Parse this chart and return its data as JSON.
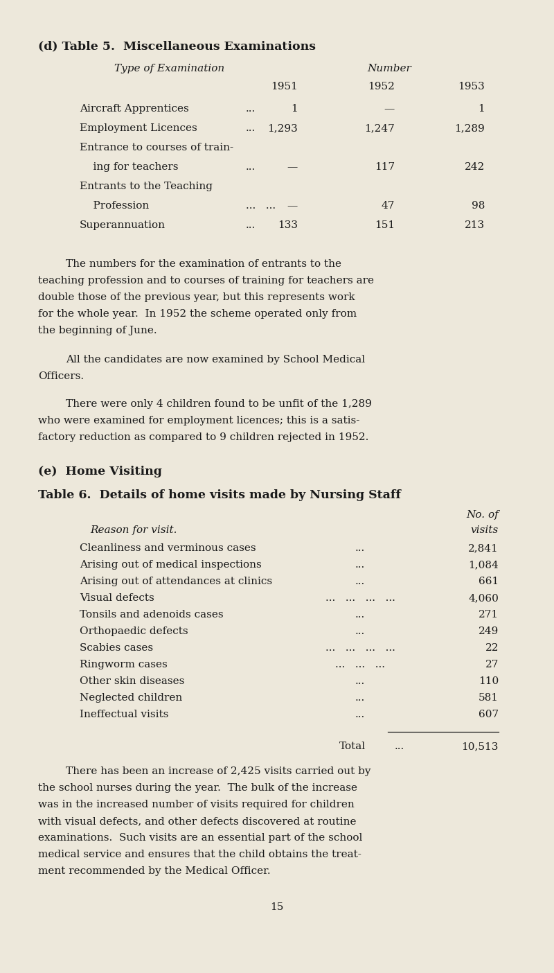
{
  "bg_color": "#ede8db",
  "text_color": "#1a1a1a",
  "page_width": 8.0,
  "page_height": 14.04,
  "dpi": 100,
  "section_d_title": "(d) Table 5.  Miscellaneous Examinations",
  "table5_col_header_type": "Type of Examination",
  "table5_col_header_number": "Number",
  "table5_year_headers": [
    "1951",
    "1952",
    "1953"
  ],
  "table5_rows": [
    {
      "label": "Aircraft Apprentices",
      "dots": "...",
      "v1951": "1",
      "v1952": "—",
      "v1953": "1"
    },
    {
      "label": "Employment Licences",
      "dots": "...",
      "v1951": "1,293",
      "v1952": "1,247",
      "v1953": "1,289"
    },
    {
      "label": "Entrance to courses of train-",
      "dots": "",
      "v1951": "",
      "v1952": "",
      "v1953": ""
    },
    {
      "label": "    ing for teachers",
      "dots": "...",
      "v1951": "—",
      "v1952": "117",
      "v1953": "242"
    },
    {
      "label": "Entrants to the Teaching",
      "dots": "",
      "v1951": "",
      "v1952": "",
      "v1953": ""
    },
    {
      "label": "    Profession",
      "dots": "...   ...",
      "v1951": "—",
      "v1952": "47",
      "v1953": "98"
    },
    {
      "label": "Superannuation",
      "dots": "...",
      "v1951": "133",
      "v1952": "151",
      "v1953": "213"
    }
  ],
  "para1_lines": [
    "The numbers for the examination of entrants to the",
    "teaching profession and to courses of training for teachers are",
    "double those of the previous year, but this represents work",
    "for the whole year.  In 1952 the scheme operated only from",
    "the beginning of June."
  ],
  "para2_lines": [
    "All the candidates are now examined by School Medical",
    "Officers."
  ],
  "para3_lines": [
    "There were only 4 children found to be unfit of the 1,289",
    "who were examined for employment licences; this is a satis-",
    "factory reduction as compared to 9 children rejected in 1952."
  ],
  "section_e_title": "(e)  Home Visiting",
  "table6_title": "Table 6.  Details of home visits made by Nursing Staff",
  "table6_col1_header": "Reason for visit.",
  "table6_col2_header_line1": "No. of",
  "table6_col2_header_line2": "visits",
  "table6_rows": [
    {
      "reason": "Cleanliness and verminous cases",
      "d1": "...",
      "d2": "...",
      "visits": "2,841"
    },
    {
      "reason": "Arising out of medical inspections",
      "d1": "...",
      "d2": "...",
      "visits": "1,084"
    },
    {
      "reason": "Arising out of attendances at clinics",
      "d1": "...",
      "d2": "...",
      "visits": "661"
    },
    {
      "reason": "Visual defects",
      "d1": "...   ...   ...   ...",
      "d2": "...",
      "visits": "4,060"
    },
    {
      "reason": "Tonsils and adenoids cases",
      "d1": "...",
      "d2": "...   ...",
      "visits": "271"
    },
    {
      "reason": "Orthopaedic defects",
      "d1": "...",
      "d2": "...   ...",
      "visits": "249"
    },
    {
      "reason": "Scabies cases",
      "d1": "...   ...   ...   ...",
      "d2": "...",
      "visits": "22"
    },
    {
      "reason": "Ringworm cases",
      "d1": "...   ...   ...",
      "d2": "...",
      "visits": "27"
    },
    {
      "reason": "Other skin diseases",
      "d1": "...",
      "d2": "...   ...",
      "visits": "110"
    },
    {
      "reason": "Neglected children",
      "d1": "...",
      "d2": "...   ...",
      "visits": "581"
    },
    {
      "reason": "Ineffectual visits",
      "d1": "...",
      "d2": "...   ...",
      "visits": "607"
    }
  ],
  "table6_total_label": "Total",
  "table6_total_dots": "...",
  "table6_total_value": "10,513",
  "para4_lines": [
    "There has been an increase of 2,425 visits carried out by",
    "the school nurses during the year.  The bulk of the increase",
    "was in the increased number of visits required for children",
    "with visual defects, and other defects discovered at routine",
    "examinations.  Such visits are an essential part of the school",
    "medical service and ensures that the child obtains the treat-",
    "ment recommended by the Medical Officer."
  ],
  "page_number": "15"
}
